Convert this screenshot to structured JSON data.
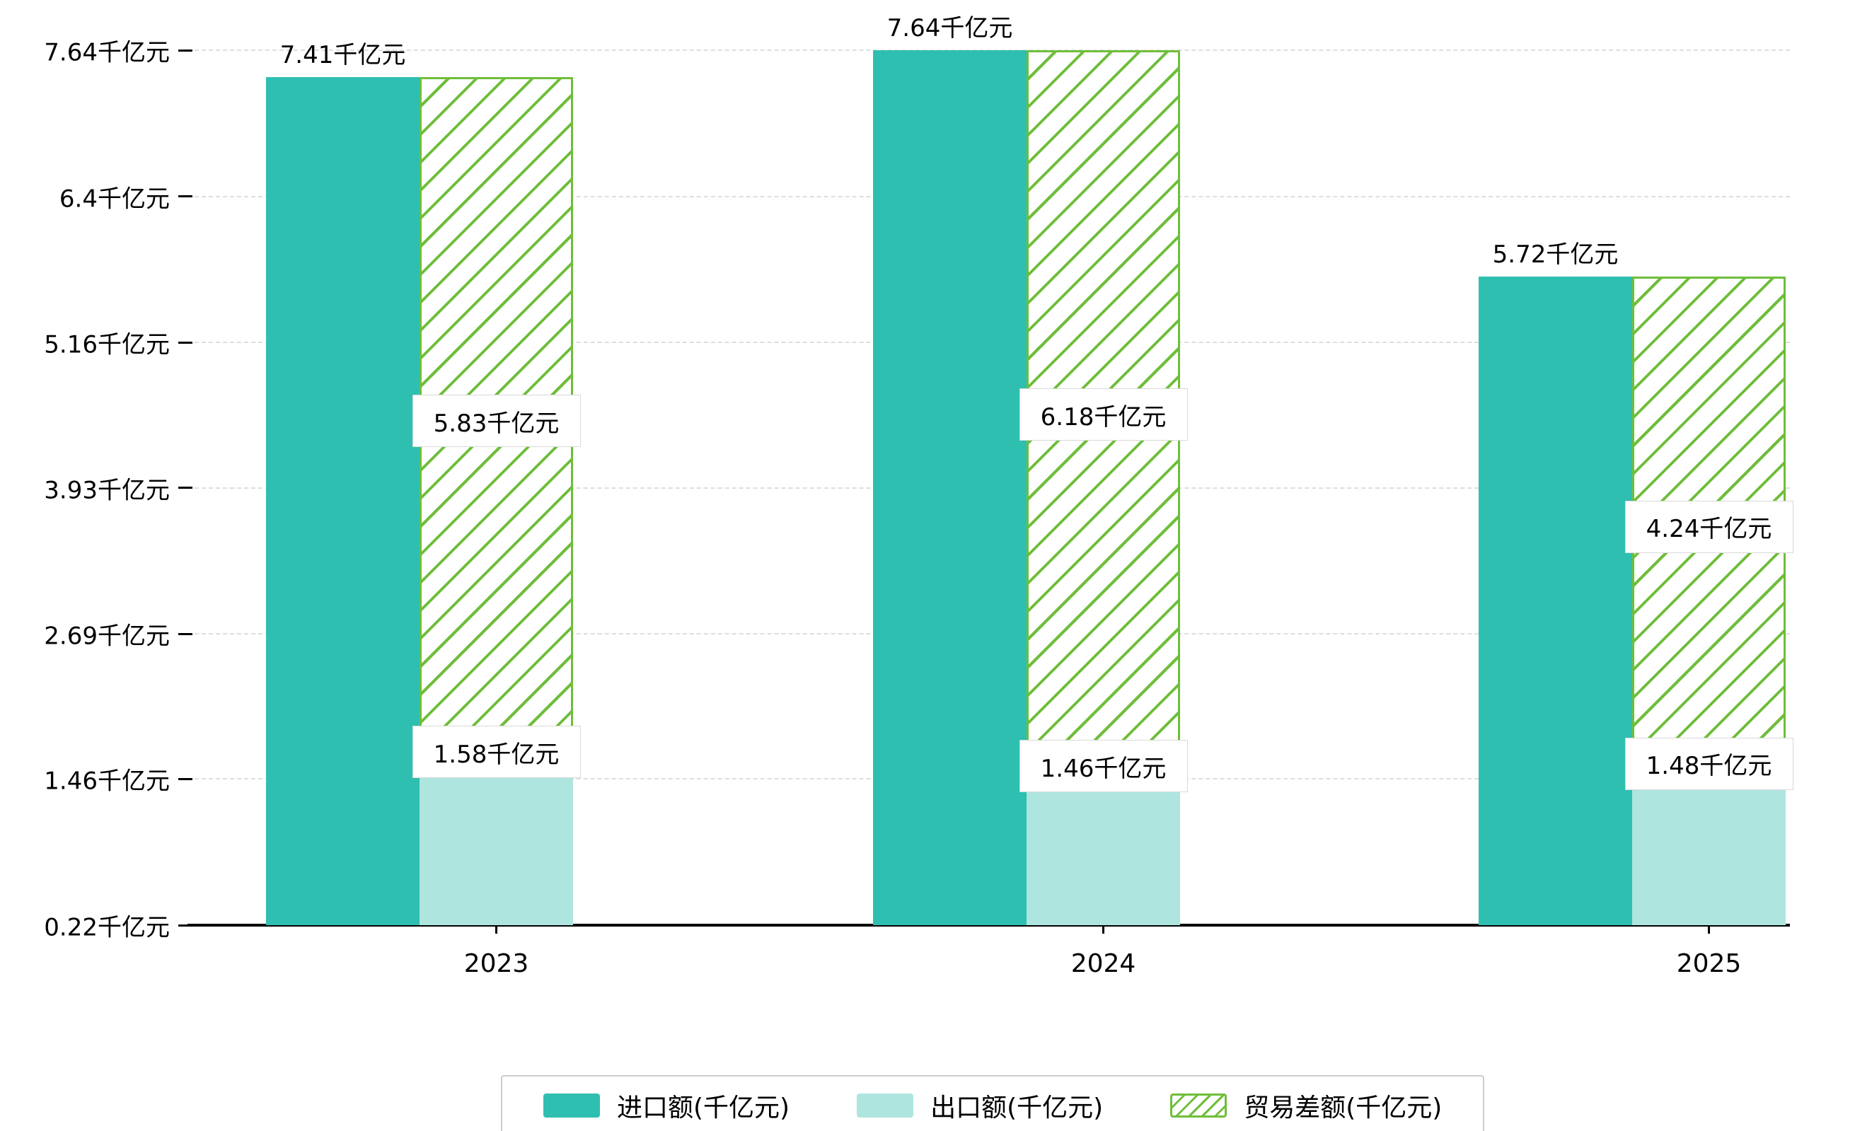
{
  "chart_data": {
    "type": "bar",
    "categories": [
      "2023",
      "2024",
      "2025"
    ],
    "series": [
      {
        "key": "import",
        "name": "进口额(千亿元)",
        "values": [
          7.41,
          7.64,
          5.72
        ],
        "color": "#2fbfb0",
        "style": "solid"
      },
      {
        "key": "export",
        "name": "出口额(千亿元)",
        "values": [
          1.58,
          1.46,
          1.48
        ],
        "color": "#aee6df",
        "style": "solid"
      },
      {
        "key": "balance",
        "name": "贸易差额(千亿元)",
        "values": [
          5.83,
          6.18,
          4.24
        ],
        "color": "#6fbe3a",
        "style": "hatched"
      }
    ],
    "bar_labels": {
      "import": [
        "7.41千亿元",
        "7.64千亿元",
        "5.72千亿元"
      ],
      "export": [
        "1.58千亿元",
        "1.46千亿元",
        "1.48千亿元"
      ],
      "balance": [
        "5.83千亿元",
        "6.18千亿元",
        "4.24千亿元"
      ]
    },
    "value_suffix": "千亿元",
    "title": "",
    "xlabel": "",
    "ylabel": "",
    "ylim": [
      0.22,
      7.64
    ],
    "y_ticks": [
      0.22,
      1.46,
      2.69,
      3.93,
      5.16,
      6.4,
      7.64
    ],
    "y_tick_labels": [
      "0.22千亿元",
      "1.46千亿元",
      "2.69千亿元",
      "3.93千亿元",
      "5.16千亿元",
      "6.4千亿元",
      "7.64千亿元"
    ],
    "grid": true,
    "legend_position": "bottom"
  }
}
